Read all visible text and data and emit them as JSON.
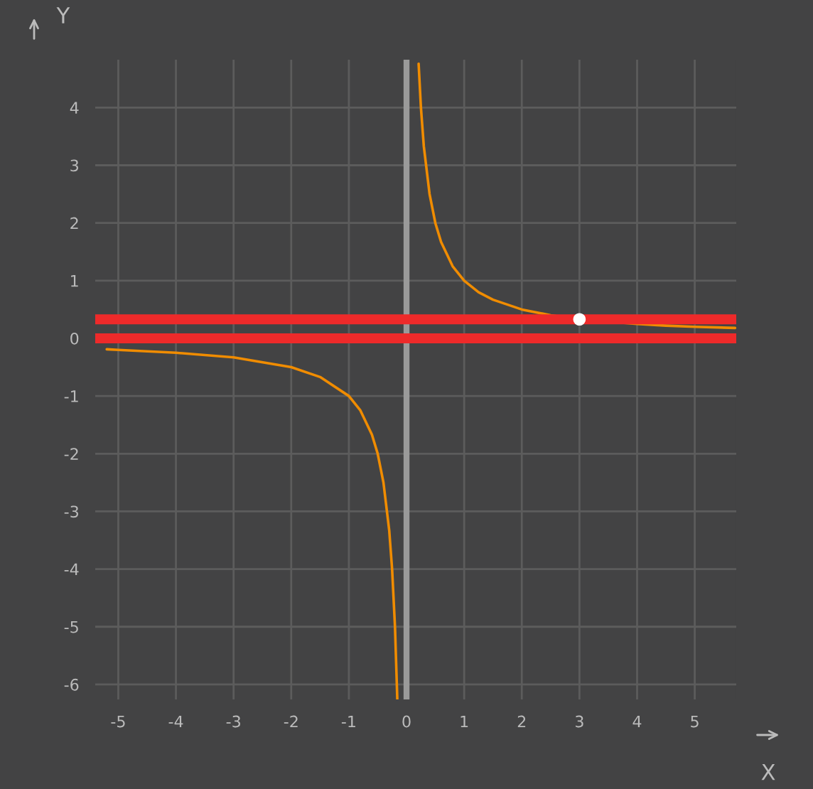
{
  "chart_data": {
    "type": "line",
    "xlabel": "X",
    "ylabel": "Y",
    "xlim": [
      -5.4,
      5.72
    ],
    "ylim": [
      -6.26,
      4.83
    ],
    "xticks": [
      -5,
      -4,
      -3,
      -2,
      -1,
      0,
      1,
      2,
      3,
      4,
      5
    ],
    "yticks": [
      -6,
      -5,
      -4,
      -3,
      -2,
      -1,
      0,
      1,
      2,
      3,
      4
    ],
    "grid": true,
    "legend": false,
    "marker": "none",
    "line_style": "solid",
    "series": [
      {
        "color": "#f08c00",
        "x": [
          -5.2,
          -5,
          -4,
          -3,
          -2,
          -1.5,
          -1,
          -0.8,
          -0.6,
          -0.5,
          -0.4,
          -0.3,
          -0.25,
          -0.2,
          -0.16,
          null,
          0.21,
          0.25,
          0.3,
          0.4,
          0.5,
          0.6,
          0.8,
          1,
          1.25,
          1.5,
          2,
          2.5,
          3,
          4,
          4.5,
          5,
          5.7
        ],
        "values": [
          -0.19,
          -0.2,
          -0.25,
          -0.33,
          -0.5,
          -0.67,
          -1,
          -1.25,
          -1.67,
          -2,
          -2.5,
          -3.33,
          -4,
          -5,
          -6.25,
          null,
          4.76,
          4,
          3.33,
          2.5,
          2,
          1.67,
          1.25,
          1,
          0.8,
          0.67,
          0.5,
          0.4,
          0.33,
          0.25,
          0.22,
          0.2,
          0.18
        ]
      },
      {
        "type": "scatter",
        "color": "#ffffff",
        "marker": "circle",
        "x": [
          3
        ],
        "values": [
          0.33
        ]
      }
    ],
    "ref_lines": [
      {
        "axis": "x",
        "value": 0,
        "color": "#9a9a9a"
      },
      {
        "axis": "y",
        "value": 0.33,
        "color": "#ee2a2a"
      },
      {
        "axis": "y",
        "value": 0,
        "color": "#ee2a2a"
      }
    ]
  }
}
